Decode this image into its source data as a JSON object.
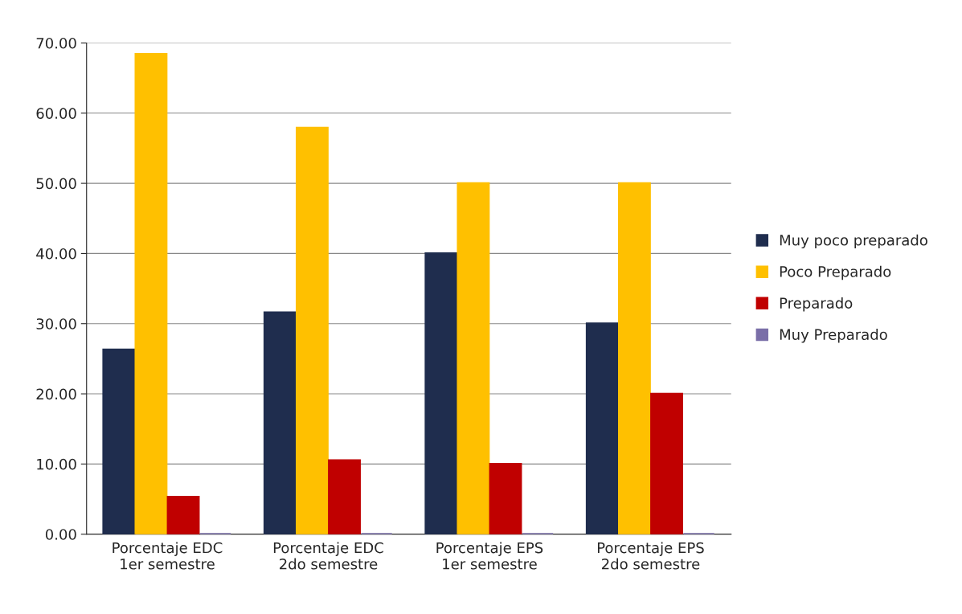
{
  "chart_data": {
    "type": "bar",
    "categories": [
      "Porcentaje EDC\n1er semestre",
      "Porcentaje EDC\n2do semestre",
      "Porcentaje EPS\n1er semestre",
      "Porcentaje EPS\n2do semestre"
    ],
    "series": [
      {
        "name": "Muy poco preparado",
        "color": "#1f2d4e",
        "values": [
          26.3,
          31.6,
          40,
          30
        ]
      },
      {
        "name": "Poco Preparado",
        "color": "#ffc000",
        "values": [
          68.4,
          57.9,
          50,
          50
        ]
      },
      {
        "name": "Preparado",
        "color": "#c00000",
        "values": [
          5.3,
          10.5,
          10,
          20
        ]
      },
      {
        "name": "Muy Preparado",
        "color": "#7a6fa8",
        "values": [
          0,
          0,
          0,
          0
        ]
      }
    ],
    "ylim": [
      0,
      70
    ],
    "yticks": [
      {
        "value": 0,
        "label": "0.00"
      },
      {
        "value": 10,
        "label": "10.00"
      },
      {
        "value": 20,
        "label": "20.00"
      },
      {
        "value": 30,
        "label": "30.00"
      },
      {
        "value": 40,
        "label": "40.00"
      },
      {
        "value": 50,
        "label": "50.00"
      },
      {
        "value": 60,
        "label": "60.00"
      },
      {
        "value": 70,
        "label": "70.00"
      }
    ],
    "grid": "y",
    "legend": "right"
  }
}
